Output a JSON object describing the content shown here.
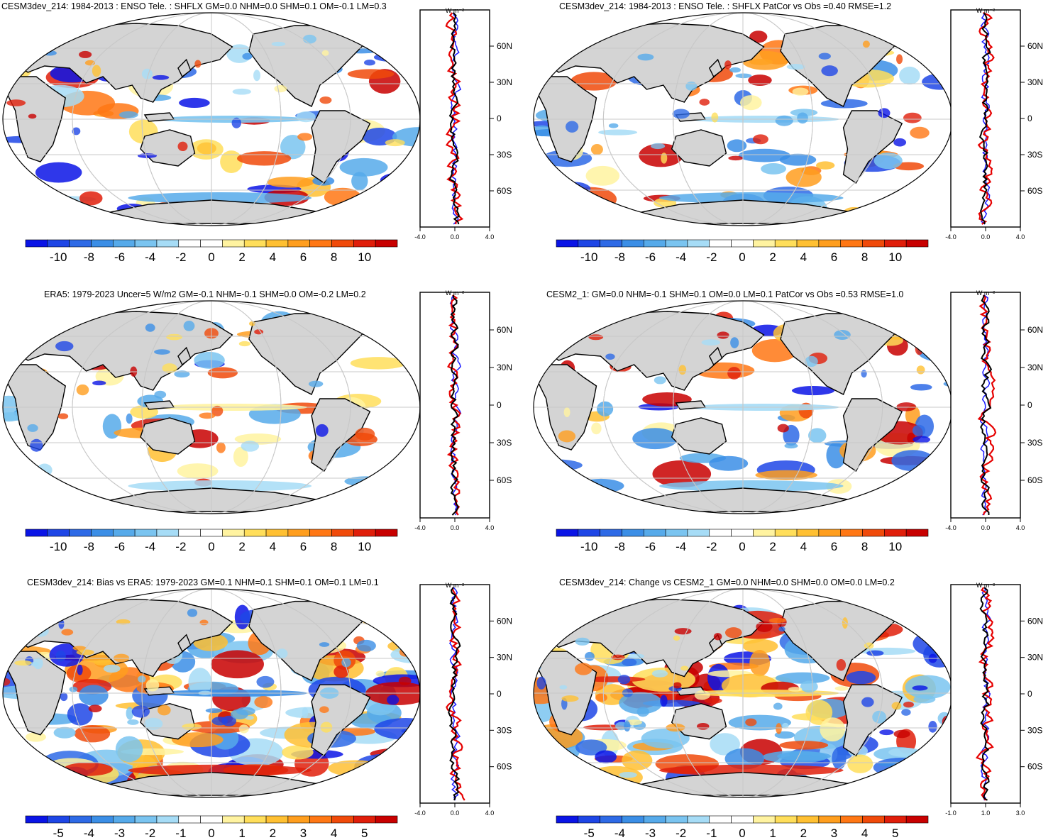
{
  "units": "W m⁻²",
  "lat_labels": [
    "60N",
    "30N",
    "0",
    "30S",
    "60S"
  ],
  "colors": {
    "land": "#d4d4d4",
    "coast": "#000000",
    "model_line": "#e60000",
    "obs_line": "#1a1aff",
    "diff_line": "#000000",
    "scale": [
      "#0a14e6",
      "#1e46e6",
      "#2e6ae6",
      "#3b8ee6",
      "#56aaea",
      "#7ac4f0",
      "#a6dcf6",
      "#ffffff",
      "#ffffff",
      "#fff3a0",
      "#ffde5a",
      "#ffc032",
      "#ff9e1e",
      "#ff7714",
      "#f04a0a",
      "#e01e0a",
      "#c80000"
    ]
  },
  "panels": [
    {
      "id": "p1",
      "title": "CESM3dev_214: 1984-2013 : ENSO Tele. : SHFLX GM=0.0 NHM=0.0 SHM=0.1 OM=-0.1 LM=0.3",
      "colorbar_labels": [
        "-10",
        "-8",
        "-6",
        "-4",
        "-2",
        "0",
        "2",
        "4",
        "6",
        "8",
        "10"
      ],
      "zonal_ticks": [
        "-4.0",
        "0.0",
        "4.0"
      ]
    },
    {
      "id": "p2",
      "title": "CESM3dev_214: 1984-2013 : ENSO Tele. : SHFLX PatCor vs Obs =0.40 RMSE=1.2",
      "colorbar_labels": [
        "-10",
        "-8",
        "-6",
        "-4",
        "-2",
        "0",
        "2",
        "4",
        "6",
        "8",
        "10"
      ],
      "zonal_ticks": [
        "-4.0",
        "0.0",
        "4.0"
      ]
    },
    {
      "id": "p3",
      "title": "ERA5: 1979-2023 Uncer=5 W/m2 GM=-0.1 NHM=-0.1 SHM=0.0 OM=-0.2 LM=0.2",
      "colorbar_labels": [
        "-10",
        "-8",
        "-6",
        "-4",
        "-2",
        "0",
        "2",
        "4",
        "6",
        "8",
        "10"
      ],
      "zonal_ticks": [
        "-4.0",
        "0.0",
        "4.0"
      ]
    },
    {
      "id": "p4",
      "title": "CESM2_1: GM=0.0 NHM=-0.1 SHM=0.1 OM=0.0 LM=0.1 PatCor vs Obs =0.53 RMSE=1.0",
      "colorbar_labels": [
        "-10",
        "-8",
        "-6",
        "-4",
        "-2",
        "0",
        "2",
        "4",
        "6",
        "8",
        "10"
      ],
      "zonal_ticks": [
        "-4.0",
        "0.0",
        "4.0"
      ]
    },
    {
      "id": "p5",
      "title": "CESM3dev_214: Bias vs ERA5: 1979-2023 GM=0.1 NHM=0.1 SHM=0.1 OM=0.1 LM=0.1",
      "colorbar_labels": [
        "-5",
        "-4",
        "-3",
        "-2",
        "-1",
        "0",
        "1",
        "2",
        "3",
        "4",
        "5"
      ],
      "zonal_ticks": [
        "-4.0",
        "0.0",
        "4.0"
      ]
    },
    {
      "id": "p6",
      "title": "CESM3dev_214: Change vs CESM2_1 GM=0.0 NHM=0.0 SHM=0.0 OM=0.0 LM=0.2",
      "colorbar_labels": [
        "-5",
        "-4",
        "-3",
        "-2",
        "-1",
        "0",
        "1",
        "2",
        "3",
        "4",
        "5"
      ],
      "zonal_ticks": [
        "-1.0",
        "1.0",
        "3.0"
      ]
    }
  ]
}
